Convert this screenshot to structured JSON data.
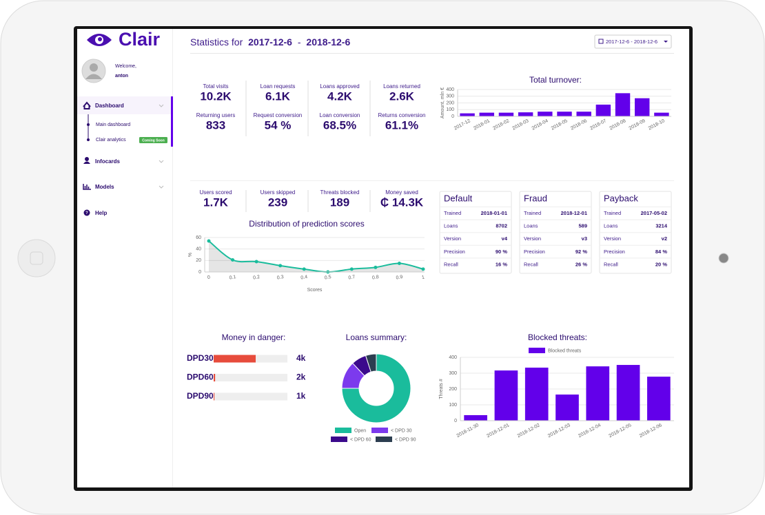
{
  "brand": "Clair",
  "user": {
    "greeting": "Welcome,",
    "name": "anton"
  },
  "menu": [
    {
      "label": "Dashboard",
      "children": [
        {
          "label": "Main dashboard"
        },
        {
          "label": "Clair analytics",
          "badge": "Coming Soon"
        }
      ]
    },
    {
      "label": "Infocards"
    },
    {
      "label": "Models"
    },
    {
      "label": "Help"
    }
  ],
  "header": {
    "prefix": "Statistics for",
    "from": "2017-12-6",
    "separator": "-",
    "to": "2018-12-6",
    "date_button": "2017-12-6 - 2018-12-6"
  },
  "stats": [
    [
      {
        "label": "Total visits",
        "value": "10.2K"
      },
      {
        "label": "Loan requests",
        "value": "6.1K"
      },
      {
        "label": "Loans approved",
        "value": "4.2K"
      },
      {
        "label": "Loans returned",
        "value": "2.6K"
      }
    ],
    [
      {
        "label": "Returning users",
        "value": "833"
      },
      {
        "label": "Request conversion",
        "value": "54 %"
      },
      {
        "label": "Loan conversion",
        "value": "68.5%"
      },
      {
        "label": "Returns conversion",
        "value": "61.1%"
      }
    ]
  ],
  "stats_2": [
    {
      "label": "Users scored",
      "value": "1.7K"
    },
    {
      "label": "Users skipped",
      "value": "239"
    },
    {
      "label": "Threats blocked",
      "value": "189"
    },
    {
      "label": "Money saved",
      "value": "₵ 14.3K"
    }
  ],
  "models": [
    {
      "name": "Default",
      "rows": [
        [
          "Trained",
          "2018-01-01"
        ],
        [
          "Loans",
          "8702"
        ],
        [
          "Version",
          "v4"
        ],
        [
          "Precision",
          "90 %"
        ],
        [
          "Recall",
          "16 %"
        ]
      ]
    },
    {
      "name": "Fraud",
      "rows": [
        [
          "Trained",
          "2018-12-01"
        ],
        [
          "Loans",
          "589"
        ],
        [
          "Version",
          "v3"
        ],
        [
          "Precision",
          "92 %"
        ],
        [
          "Recall",
          "26 %"
        ]
      ]
    },
    {
      "name": "Payback",
      "rows": [
        [
          "Trained",
          "2017-05-02"
        ],
        [
          "Loans",
          "3214"
        ],
        [
          "Version",
          "v2"
        ],
        [
          "Precision",
          "84 %"
        ],
        [
          "Recall",
          "20 %"
        ]
      ]
    }
  ],
  "money_in_danger": {
    "title": "Money in danger:",
    "items": [
      {
        "label": "DPD30",
        "amount": "4k",
        "share": 57
      },
      {
        "label": "DPD60",
        "amount": "2k",
        "share": 2
      },
      {
        "label": "DPD90",
        "amount": "1k",
        "share": 1
      }
    ]
  },
  "chart_data": [
    {
      "type": "bar",
      "title": "Total turnover:",
      "y_label": "Amount, mln €",
      "categories": [
        "2017-12",
        "2018-01",
        "2018-02",
        "2018-03",
        "2018-04",
        "2018-05",
        "2018-06",
        "2018-07",
        "2018-08",
        "2018-09",
        "2018-10"
      ],
      "values": [
        45,
        55,
        55,
        60,
        70,
        70,
        70,
        175,
        345,
        270,
        55
      ],
      "color": "#6200ea",
      "ylim": [
        0,
        400
      ],
      "yticks": [
        0,
        100,
        200,
        300,
        400
      ],
      "grid": true
    },
    {
      "type": "line",
      "title": "Distribution of prediction scores",
      "x_label": "Scores",
      "y_label": "%",
      "categories": [
        "0",
        "0.1",
        "0.2",
        "0.3",
        "0.4",
        "0.5",
        "0.7",
        "0.8",
        "0.9",
        "1"
      ],
      "values": [
        54,
        21,
        18,
        11,
        5,
        0,
        5,
        8,
        15,
        5
      ],
      "color": "#1abc9c",
      "ylim": [
        0,
        60
      ],
      "yticks": [
        0,
        20,
        40,
        60
      ],
      "grid": true
    },
    {
      "type": "pie",
      "title": "Loans summary:",
      "categories": [
        "Open",
        "< DPD 30",
        "< DPD 60",
        "< DPD 90"
      ],
      "values": [
        75,
        13,
        7,
        5
      ],
      "colors": [
        "#1abc9c",
        "#7c3aed",
        "#3b0a8c",
        "#2c3e50"
      ]
    },
    {
      "type": "bar",
      "title": "Blocked threats:",
      "y_label": "Threats #",
      "categories": [
        "2018-11-30",
        "2018-12-01",
        "2018-12-02",
        "2018-12-03",
        "2018-12-04",
        "2018-12-05",
        "2018-12-06"
      ],
      "series": [
        {
          "name": "Blocked threats",
          "color": "#6200ea",
          "values": [
            35,
            317,
            335,
            165,
            343,
            352,
            278
          ]
        }
      ],
      "ylim": [
        0,
        400
      ],
      "yticks": [
        0,
        100,
        200,
        300,
        400
      ],
      "grid": true
    }
  ]
}
